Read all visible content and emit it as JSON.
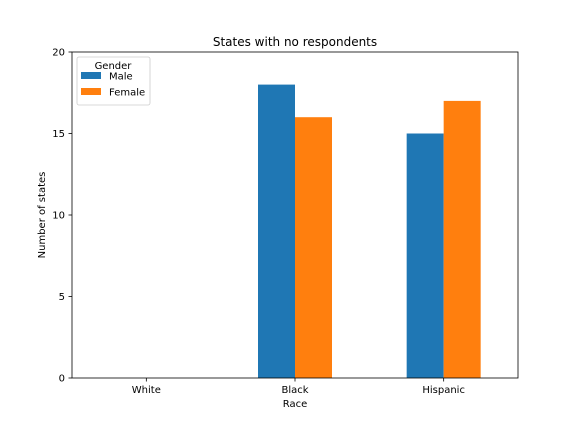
{
  "chart_data": {
    "type": "bar",
    "title": "States with no respondents",
    "xlabel": "Race",
    "ylabel": "Number of states",
    "categories": [
      "White",
      "Black",
      "Hispanic"
    ],
    "ylim": [
      0,
      20
    ],
    "yticks": [
      0,
      5,
      10,
      15,
      20
    ],
    "grid": false,
    "legend": {
      "title": "Gender",
      "placement": "upper-left"
    },
    "series": [
      {
        "name": "Male",
        "color": "#1f77b4",
        "values": [
          0,
          18,
          15
        ]
      },
      {
        "name": "Female",
        "color": "#ff7f0e",
        "values": [
          0,
          16,
          17
        ]
      }
    ]
  }
}
